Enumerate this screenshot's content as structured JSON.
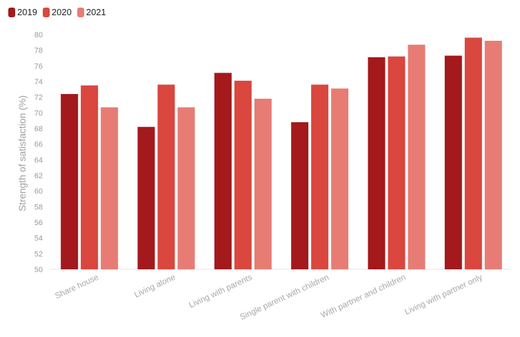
{
  "chart_data": {
    "type": "bar",
    "title": "",
    "xlabel": "",
    "ylabel": "Strength of satisfaction (%)",
    "ylim": [
      50,
      80
    ],
    "y_ticks": [
      50,
      52,
      54,
      56,
      58,
      60,
      62,
      64,
      66,
      68,
      70,
      72,
      74,
      76,
      78,
      80
    ],
    "categories": [
      "Share house",
      "Living alone",
      "Living with parents",
      "Single parent with children",
      "With partner and children",
      "Living with partner only"
    ],
    "series": [
      {
        "name": "2019",
        "color": "#a3191c",
        "values": [
          72.4,
          68.2,
          75.1,
          68.8,
          77.1,
          77.3
        ]
      },
      {
        "name": "2020",
        "color": "#d9473f",
        "values": [
          73.5,
          73.6,
          74.1,
          73.6,
          77.2,
          79.6
        ]
      },
      {
        "name": "2021",
        "color": "#e77c74",
        "values": [
          70.7,
          70.7,
          71.8,
          73.1,
          78.7,
          79.2
        ]
      }
    ],
    "legend_position": "top-left",
    "grid": false
  }
}
